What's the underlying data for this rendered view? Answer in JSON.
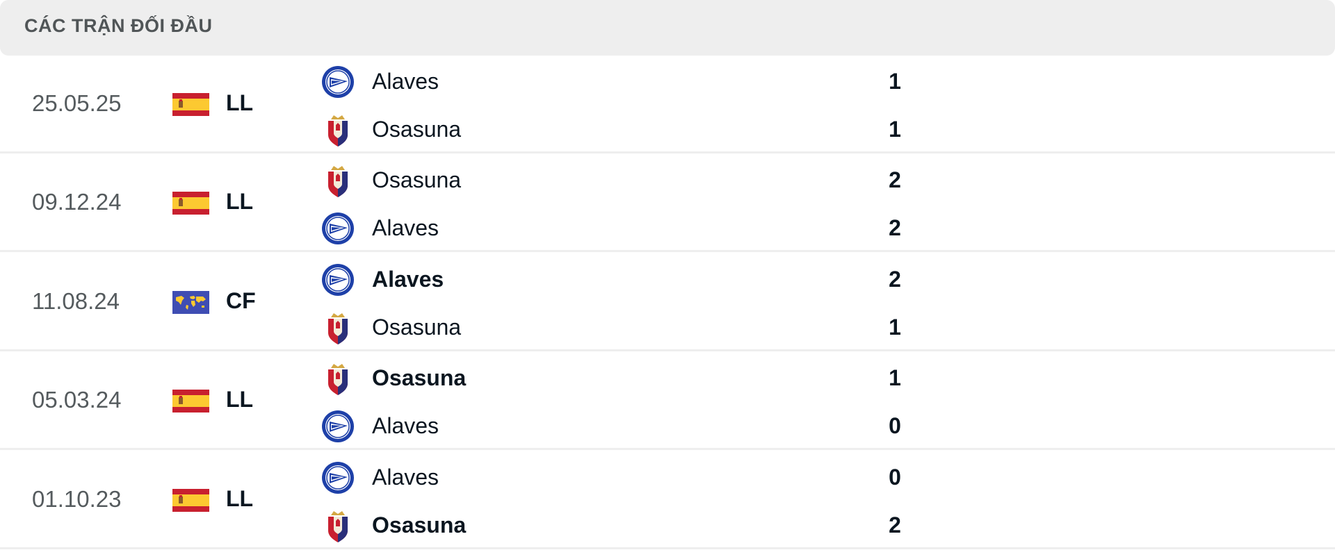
{
  "header": {
    "title": "CÁC TRẬN ĐỐI ĐẦU"
  },
  "matches": [
    {
      "date": "25.05.25",
      "flag": "spain-flag",
      "league": "LL",
      "home": {
        "name": "Alaves",
        "logo": "alaves",
        "score": "1",
        "bold": false
      },
      "away": {
        "name": "Osasuna",
        "logo": "osasuna",
        "score": "1",
        "bold": false
      }
    },
    {
      "date": "09.12.24",
      "flag": "spain-flag",
      "league": "LL",
      "home": {
        "name": "Osasuna",
        "logo": "osasuna",
        "score": "2",
        "bold": false
      },
      "away": {
        "name": "Alaves",
        "logo": "alaves",
        "score": "2",
        "bold": false
      }
    },
    {
      "date": "11.08.24",
      "flag": "world-flag",
      "league": "CF",
      "home": {
        "name": "Alaves",
        "logo": "alaves",
        "score": "2",
        "bold": true
      },
      "away": {
        "name": "Osasuna",
        "logo": "osasuna",
        "score": "1",
        "bold": false
      }
    },
    {
      "date": "05.03.24",
      "flag": "spain-flag",
      "league": "LL",
      "home": {
        "name": "Osasuna",
        "logo": "osasuna",
        "score": "1",
        "bold": true
      },
      "away": {
        "name": "Alaves",
        "logo": "alaves",
        "score": "0",
        "bold": false
      }
    },
    {
      "date": "01.10.23",
      "flag": "spain-flag",
      "league": "LL",
      "home": {
        "name": "Alaves",
        "logo": "alaves",
        "score": "0",
        "bold": false
      },
      "away": {
        "name": "Osasuna",
        "logo": "osasuna",
        "score": "2",
        "bold": true
      }
    }
  ],
  "colors": {
    "header_bg": "#eeeeee",
    "alaves_blue": "#1e40a8",
    "osasuna_red": "#c8202f",
    "osasuna_navy": "#2a2f7a",
    "spain_red": "#c8202f",
    "spain_yellow": "#fcc931",
    "world_blue": "#3f4db3"
  }
}
